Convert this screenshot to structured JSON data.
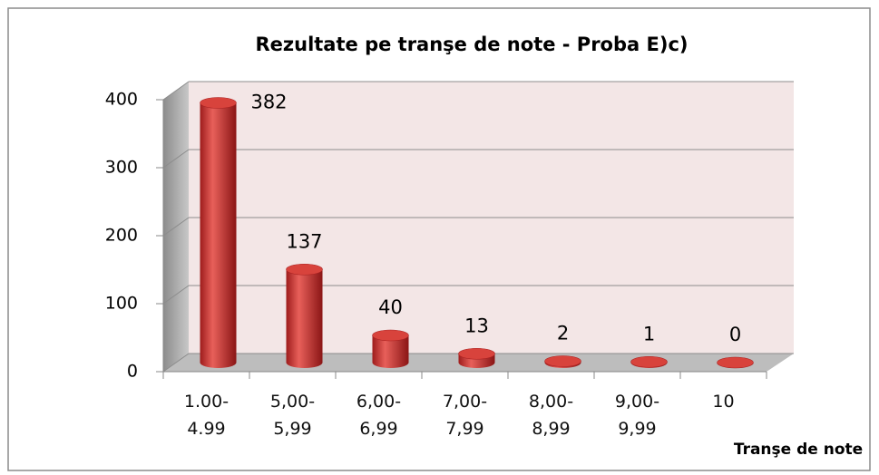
{
  "chart_data": {
    "type": "bar3d",
    "title": "Rezultate pe tranşe de note - Proba E)c)",
    "categories": [
      "1.00- 4.99",
      "5,00- 5,99",
      "6,00- 6,99",
      "7,00- 7,99",
      "8,00- 8,99",
      "9,00- 9,99",
      "10"
    ],
    "values": [
      382,
      137,
      40,
      13,
      2,
      1,
      0
    ],
    "color": "#c0392b",
    "xlabel": "Tranşe de note",
    "ylim": [
      0,
      400
    ],
    "yticks": [
      0,
      100,
      200,
      300,
      400
    ],
    "grid": true
  }
}
